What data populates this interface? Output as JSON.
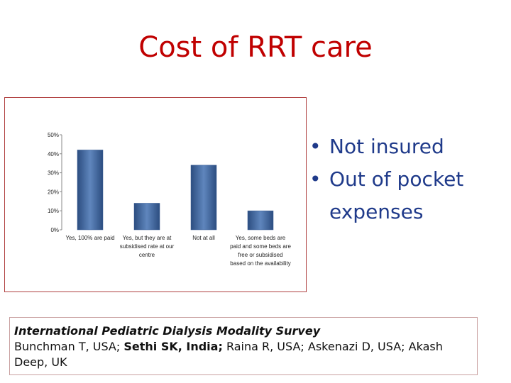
{
  "slide": {
    "title": "Cost of RRT care"
  },
  "bullets": [
    {
      "text": "Not insured"
    },
    {
      "text": "Out of pocket expenses"
    }
  ],
  "citation": {
    "title": "International Pediatric Dialysis Modality Survey",
    "part1": "Bunchman T, USA; ",
    "part2": "Sethi SK, India;",
    "part3": " Raina R, USA; Askenazi D, USA; Akash Deep, UK"
  },
  "chart_data": {
    "type": "bar",
    "categories": [
      [
        "Yes, 100%  are paid"
      ],
      [
        "Yes, but they are at",
        "subsidised rate at our",
        "centre"
      ],
      [
        "Not at all"
      ],
      [
        "Yes, some beds are",
        "paid and some beds are",
        "free or subsidised",
        "based on the availability"
      ]
    ],
    "values": [
      42,
      14,
      34,
      10
    ],
    "ylim": [
      0,
      50
    ],
    "yticks": [
      "0%",
      "10%",
      "20%",
      "30%",
      "40%",
      "50%"
    ],
    "bar_color": "#3a5f96",
    "grid": false
  }
}
